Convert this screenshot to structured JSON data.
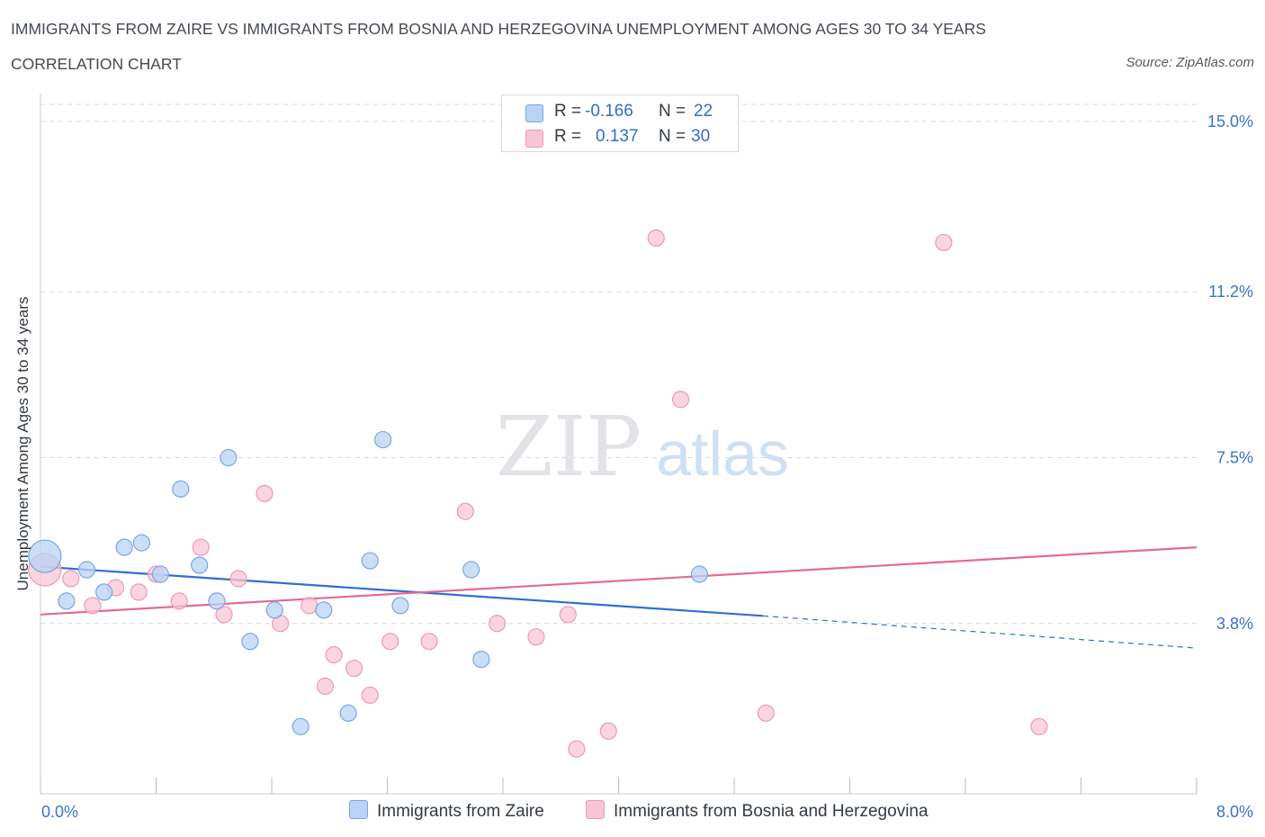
{
  "header": {
    "title": "IMMIGRANTS FROM ZAIRE VS IMMIGRANTS FROM BOSNIA AND HERZEGOVINA UNEMPLOYMENT AMONG AGES 30 TO 34 YEARS",
    "subtitle": "CORRELATION CHART",
    "source": "Source: ZipAtlas.com"
  },
  "legend": {
    "r_label": "R =",
    "n_label": "N =",
    "series": [
      {
        "r": "-0.166",
        "n": "22"
      },
      {
        "r": "0.137",
        "n": "30"
      }
    ]
  },
  "watermark": {
    "zip": "ZIP",
    "atlas": "atlas"
  },
  "colors": {
    "zaire_fill": "#b9d3f5",
    "zaire_stroke": "#7aa6e0",
    "zaire_line": "#2f6fcf",
    "bosnia_fill": "#f8c5d4",
    "bosnia_stroke": "#ec9bb5",
    "bosnia_line": "#e36a96",
    "tick_label": "#3b72c8",
    "grid": "#d6d9de"
  },
  "chart_data": {
    "type": "scatter",
    "title": "IMMIGRANTS FROM ZAIRE VS IMMIGRANTS FROM BOSNIA AND HERZEGOVINA UNEMPLOYMENT AMONG AGES 30 TO 34 YEARS",
    "xlabel": "",
    "ylabel": "Unemployment Among Ages 30 to 34 years",
    "xlim": [
      0,
      8.0
    ],
    "ylim": [
      0,
      15.0
    ],
    "x_tick_labels": [
      "0.0%",
      "8.0%"
    ],
    "y_ticks": [
      3.8,
      7.5,
      11.2,
      15.0
    ],
    "y_tick_labels": [
      "3.8%",
      "7.5%",
      "11.2%",
      "15.0%"
    ],
    "grid": true,
    "legend_position": "top-center",
    "series": [
      {
        "name": "Immigrants from Zaire",
        "x": [
          0.03,
          0.18,
          0.32,
          0.44,
          0.58,
          0.7,
          0.83,
          0.97,
          1.1,
          1.22,
          1.3,
          1.45,
          1.62,
          1.8,
          1.96,
          2.13,
          2.28,
          2.37,
          2.49,
          2.98,
          3.05,
          4.56
        ],
        "y": [
          5.3,
          4.3,
          5.0,
          4.5,
          5.5,
          5.6,
          4.9,
          6.8,
          5.1,
          4.3,
          7.5,
          3.4,
          4.1,
          1.5,
          4.1,
          1.8,
          5.2,
          7.9,
          4.2,
          5.0,
          3.0,
          4.9
        ],
        "sizes": [
          18,
          9,
          9,
          9,
          9,
          9,
          9,
          9,
          9,
          9,
          9,
          9,
          9,
          9,
          9,
          9,
          9,
          9,
          9,
          9,
          9,
          9
        ],
        "trend": {
          "x": [
            0.0,
            5.0
          ],
          "y": [
            5.07,
            3.97
          ],
          "dashed_to": [
            8.0,
            3.25
          ]
        }
      },
      {
        "name": "Immigrants from Bosnia and Herzegovina",
        "x": [
          0.03,
          0.21,
          0.36,
          0.52,
          0.68,
          0.8,
          0.96,
          1.11,
          1.27,
          1.37,
          1.55,
          1.66,
          1.86,
          1.97,
          2.03,
          2.17,
          2.28,
          2.42,
          2.69,
          2.94,
          3.16,
          3.43,
          3.65,
          3.71,
          3.93,
          4.26,
          4.43,
          5.02,
          6.25,
          6.91
        ],
        "y": [
          5.0,
          4.8,
          4.2,
          4.6,
          4.5,
          4.9,
          4.3,
          5.5,
          4.0,
          4.8,
          6.7,
          3.8,
          4.2,
          2.4,
          3.1,
          2.8,
          2.2,
          3.4,
          3.4,
          6.3,
          3.8,
          3.5,
          4.0,
          1.0,
          1.4,
          12.4,
          8.8,
          1.8,
          12.3,
          1.5
        ],
        "sizes": [
          18,
          9,
          9,
          9,
          9,
          9,
          9,
          9,
          9,
          9,
          9,
          9,
          9,
          9,
          9,
          9,
          9,
          9,
          9,
          9,
          9,
          9,
          9,
          9,
          9,
          9,
          9,
          9,
          9,
          9
        ],
        "trend": {
          "x": [
            0.0,
            8.0
          ],
          "y": [
            4.0,
            5.5
          ]
        }
      }
    ]
  }
}
